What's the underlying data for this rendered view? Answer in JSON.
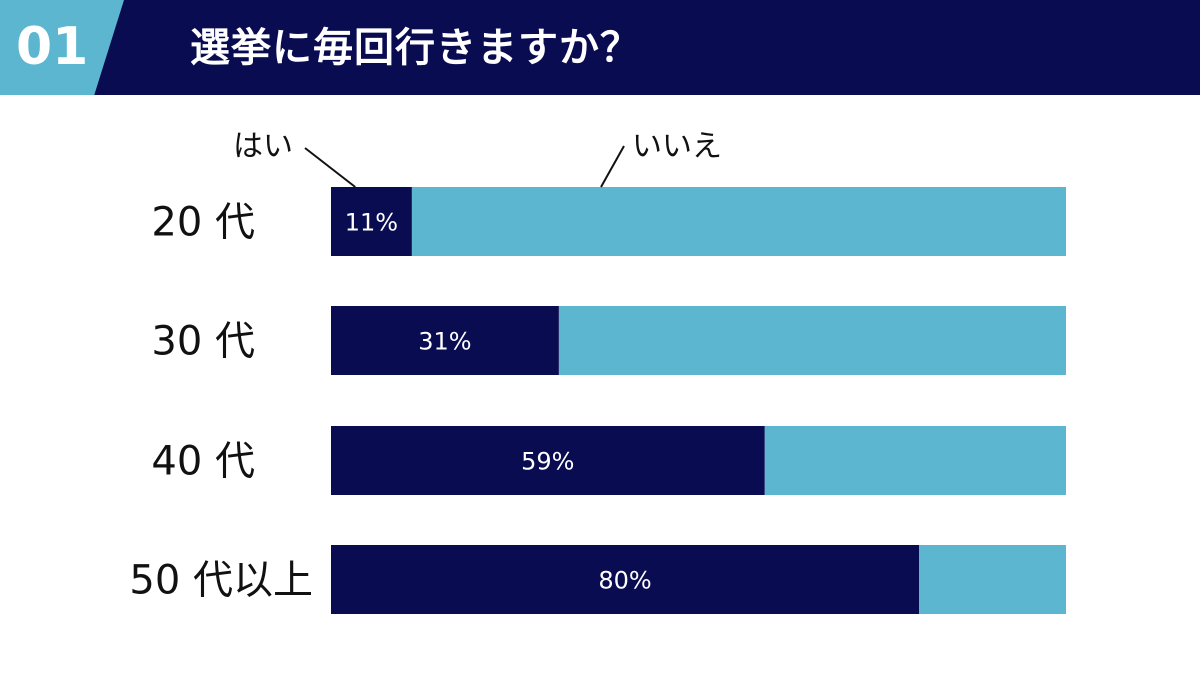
{
  "header": {
    "number": "01",
    "title": "選挙に毎回行きますか？"
  },
  "colors": {
    "header_bg": "#0a0c52",
    "accent": "#5cb6cf",
    "yes": "#0a0c52",
    "no": "#5cb6cf"
  },
  "chart_data": {
    "type": "bar",
    "orientation": "horizontal",
    "stacked": true,
    "title": "選挙に毎回行きますか？",
    "categories": [
      "20 代",
      "30 代",
      "40 代",
      "50 代以上"
    ],
    "series": [
      {
        "name": "はい",
        "values": [
          11,
          31,
          59,
          80
        ]
      },
      {
        "name": "いいえ",
        "values": [
          89,
          69,
          41,
          20
        ]
      }
    ],
    "data_labels": [
      "11%",
      "31%",
      "59%",
      "80%"
    ],
    "xlim": [
      0,
      100
    ],
    "grid": false,
    "legend": "top, callout labels"
  }
}
